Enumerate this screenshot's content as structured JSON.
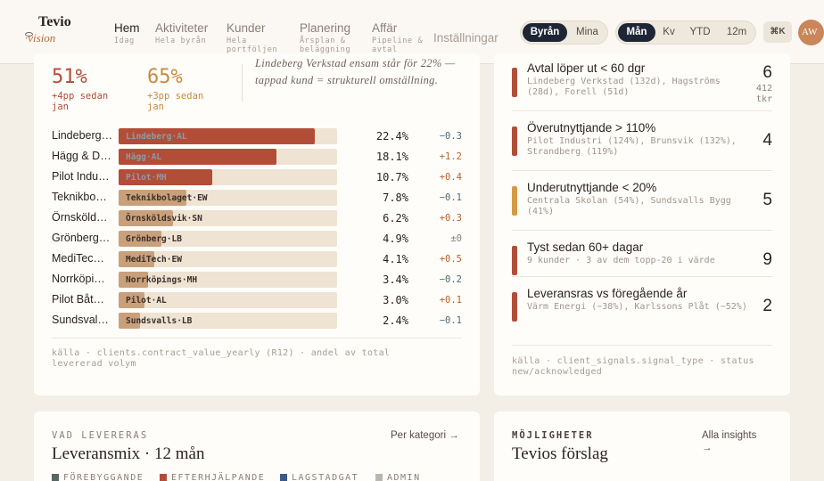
{
  "brand": {
    "name": "Tevio",
    "sub": "·vision"
  },
  "nav": [
    {
      "label": "Hem",
      "sub": "Idag"
    },
    {
      "label": "Aktiviteter",
      "sub": "Hela byrån"
    },
    {
      "label": "Kunder",
      "sub": "Hela portföljen"
    },
    {
      "label": "Planering",
      "sub": "Årsplan & beläggning"
    },
    {
      "label": "Affär",
      "sub": "Pipeline & avtal"
    },
    {
      "label": "Inställningar",
      "sub": ""
    }
  ],
  "scope_toggle": [
    "Byrån",
    "Mina"
  ],
  "period_toggle": [
    "Mån",
    "Kv",
    "YTD",
    "12m"
  ],
  "shortcut": "⌘K",
  "user_initials": "AW",
  "kpis": [
    {
      "value": "51%",
      "delta": "+4pp sedan jan",
      "color": "#b24d38"
    },
    {
      "value": "65%",
      "delta": "+3pp sedan jan",
      "color": "#c98a3f"
    }
  ],
  "note": "Lindeberg Verkstad ensam står för 22% — tappad kund = strukturell omställning.",
  "clients": [
    {
      "name": "Lindeberg…",
      "tag": "Lindeberg·AL",
      "share": 22.4,
      "pct": "22.4%",
      "delta": "−0.3",
      "trend": "down",
      "fill": "#b24d38"
    },
    {
      "name": "Hägg & D…",
      "tag": "Hägg·AL",
      "share": 18.1,
      "pct": "18.1%",
      "delta": "+1.2",
      "trend": "up",
      "fill": "#b24d38"
    },
    {
      "name": "Pilot Indu…",
      "tag": "Pilot·MH",
      "share": 10.7,
      "pct": "10.7%",
      "delta": "+0.4",
      "trend": "up",
      "fill": "#b24d38"
    },
    {
      "name": "Teknikbo…",
      "tag": "Teknikbolaget·EW",
      "share": 7.8,
      "pct": "7.8%",
      "delta": "−0.1",
      "trend": "down",
      "fill": "#c9a07a"
    },
    {
      "name": "Örnsköld…",
      "tag": "Örnsköldsvik·SN",
      "share": 6.2,
      "pct": "6.2%",
      "delta": "+0.3",
      "trend": "up",
      "fill": "#c9a07a"
    },
    {
      "name": "Grönberg…",
      "tag": "Grönberg·LB",
      "share": 4.9,
      "pct": "4.9%",
      "delta": "±0",
      "trend": "flat",
      "fill": "#c9a07a"
    },
    {
      "name": "MediTec…",
      "tag": "MediTech·EW",
      "share": 4.1,
      "pct": "4.1%",
      "delta": "+0.5",
      "trend": "up",
      "fill": "#c9a07a"
    },
    {
      "name": "Norrköpi…",
      "tag": "Norrköpings·MH",
      "share": 3.4,
      "pct": "3.4%",
      "delta": "−0.2",
      "trend": "down",
      "fill": "#c9a07a"
    },
    {
      "name": "Pilot Båt…",
      "tag": "Pilot·AL",
      "share": 3.0,
      "pct": "3.0%",
      "delta": "+0.1",
      "trend": "up",
      "fill": "#c9a07a"
    },
    {
      "name": "Sundsval…",
      "tag": "Sundsvalls·LB",
      "share": 2.4,
      "pct": "2.4%",
      "delta": "−0.1",
      "trend": "down",
      "fill": "#c9a07a"
    }
  ],
  "clients_source": "källa · clients.contract_value_yearly (R12) · andel av total levererad volym",
  "signals": [
    {
      "title": "Avtal löper ut < 60 dgr",
      "desc": "Lindeberg Verkstad (132d), Hagströms (28d), Forell (51d)",
      "count": "6",
      "unit": "412 tkr",
      "color": "#b24d38"
    },
    {
      "title": "Överutnyttjande > 110%",
      "desc": "Pilot Industri (124%), Brunsvik (132%), Strandberg (119%)",
      "count": "4",
      "unit": "",
      "color": "#b24d38"
    },
    {
      "title": "Underutnyttjande < 20%",
      "desc": "Centrala Skolan (54%), Sundsvalls Bygg (41%)",
      "count": "5",
      "unit": "",
      "color": "#d49a45"
    },
    {
      "title": "Tyst sedan 60+ dagar",
      "desc": "9 kunder · 3 av dem topp-20 i värde",
      "count": "9",
      "unit": "",
      "color": "#b24d38"
    },
    {
      "title": "Leveransras vs föregående år",
      "desc": "Värm Energi (−38%), Karlssons Plåt (−52%)",
      "count": "2",
      "unit": "",
      "color": "#b24d38"
    }
  ],
  "signals_source": "källa · client_signals.signal_type · status new/acknowledged",
  "mix": {
    "eyebrow": "VAD LEVERERAS",
    "title": "Leveransmix · 12 mån",
    "link": "Per kategori →",
    "legend": [
      {
        "label": "FÖREBYGGANDE",
        "color": "#5a6664"
      },
      {
        "label": "EFTERHJÄLPANDE",
        "color": "#b24d38"
      },
      {
        "label": "LAGSTADGAT",
        "color": "#3e5a8a"
      },
      {
        "label": "ADMIN",
        "color": "#bdb6ae"
      }
    ]
  },
  "opps": {
    "eyebrow": "MÖJLIGHETER",
    "title": "Tevios förslag",
    "link": "Alla insights →"
  },
  "colors": {
    "up": "#b5612e",
    "down": "#4f6a72",
    "flat": "#8b7f76"
  }
}
